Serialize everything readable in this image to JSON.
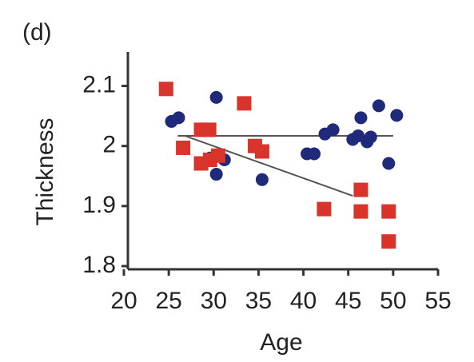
{
  "chart_data": {
    "type": "scatter",
    "panel_label": "(d)",
    "xlabel": "Age",
    "ylabel": "Thickness",
    "xlim": [
      20,
      55
    ],
    "xticks": [
      20,
      25,
      30,
      35,
      40,
      45,
      50,
      55
    ],
    "ylim": [
      1.8,
      2.15
    ],
    "yticks": [
      1.8,
      1.9,
      2,
      2.1
    ],
    "series": [
      {
        "color": "#1f2a7a",
        "marker": "circle",
        "x": [
          25.3,
          26.1,
          30.3,
          31.2,
          30.3,
          29.6,
          35.4,
          40.4,
          41.2,
          42.4,
          43.3,
          45.5,
          46.1,
          46.4,
          47.1,
          47.5,
          48.4,
          49.5,
          50.4
        ],
        "values": [
          2.041,
          2.047,
          2.081,
          1.977,
          1.953,
          1.98,
          1.944,
          1.987,
          1.987,
          2.02,
          2.027,
          2.011,
          2.017,
          2.047,
          2.007,
          2.015,
          2.067,
          1.971,
          2.051
        ]
      },
      {
        "color": "#d9342b",
        "marker": "square",
        "x": [
          24.7,
          26.6,
          28.6,
          29.5,
          28.6,
          29.6,
          30.5,
          33.4,
          34.6,
          35.4,
          42.3,
          46.4,
          46.4,
          49.5,
          49.5
        ],
        "values": [
          2.095,
          1.997,
          2.027,
          2.027,
          1.971,
          1.977,
          1.984,
          2.071,
          2.0,
          1.991,
          1.895,
          1.927,
          1.891,
          1.891,
          1.841
        ]
      }
    ],
    "fit_lines": [
      {
        "color": "#555555",
        "x": [
          26,
          50
        ],
        "values": [
          2.017,
          2.017
        ]
      },
      {
        "color": "#555555",
        "x": [
          26.8,
          45.5
        ],
        "values": [
          2.017,
          1.917
        ]
      }
    ]
  }
}
